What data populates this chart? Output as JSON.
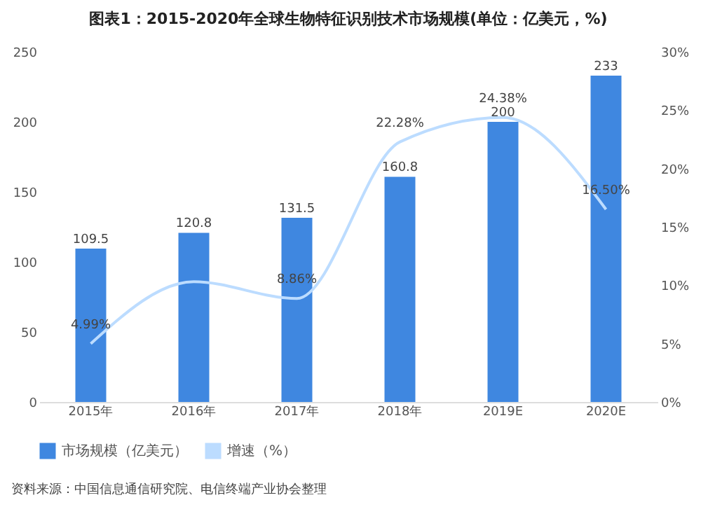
{
  "chart_data": {
    "type": "bar",
    "title": "图表1：2015-2020年全球生物特征识别技术市场规模(单位：亿美元，%)",
    "categories": [
      "2015年",
      "2016年",
      "2017年",
      "2018年",
      "2019E",
      "2020E"
    ],
    "series": [
      {
        "name": "市场规模（亿美元）",
        "color": "#3f87e0",
        "values": [
          109.5,
          120.8,
          131.5,
          160.8,
          200,
          233
        ],
        "data_labels": true
      },
      {
        "name": "增速（%）",
        "type": "line",
        "axis": "y2",
        "color": "#bcdcff",
        "values": [
          4.99,
          10.3,
          8.86,
          22.28,
          24.38,
          16.5
        ],
        "value_labels": [
          "4.99%",
          null,
          "8.86%",
          "22.28%",
          "24.38%",
          "16.50%"
        ]
      }
    ],
    "ylim": [
      0,
      250
    ],
    "yticks": [
      0,
      50,
      100,
      150,
      200,
      250
    ],
    "y2lim": [
      0,
      30
    ],
    "y2ticks": [
      {
        "value": 0,
        "label": "0%"
      },
      {
        "value": 5,
        "label": "5%"
      },
      {
        "value": 10,
        "label": "10%"
      },
      {
        "value": 15,
        "label": "15%"
      },
      {
        "value": 20,
        "label": "20%"
      },
      {
        "value": 25,
        "label": "25%"
      },
      {
        "value": 30,
        "label": "30%"
      }
    ],
    "legend": "bottom",
    "grid": false,
    "marker": "none",
    "annotations": [
      "资料来源：中国信息通信研究院、电信终端产业协会整理"
    ]
  }
}
